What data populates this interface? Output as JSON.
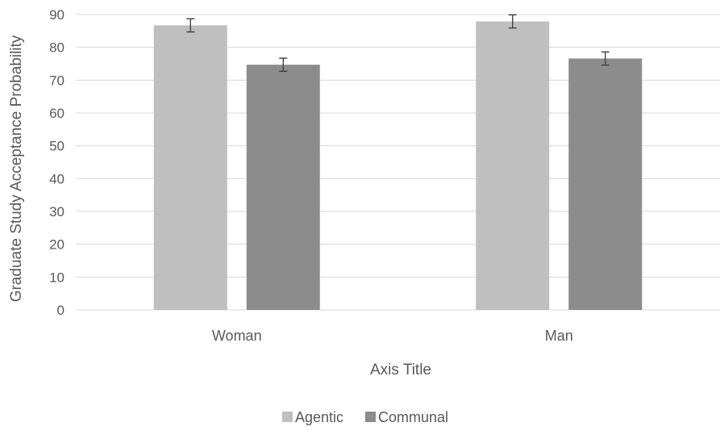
{
  "chart_data": {
    "type": "bar",
    "categories": [
      "Woman",
      "Man"
    ],
    "series": [
      {
        "name": "Agentic",
        "values": [
          86.7,
          87.9
        ],
        "error": [
          2.0,
          2.0
        ],
        "color": "#bfbfbf"
      },
      {
        "name": "Communal",
        "values": [
          74.7,
          76.6
        ],
        "error": [
          2.0,
          2.0
        ],
        "color": "#8c8c8c"
      }
    ],
    "xlabel": "Axis Title",
    "ylabel": "Graduate Study Acceptance Probability",
    "ylim": [
      0,
      90
    ],
    "yticks": [
      0,
      10,
      20,
      30,
      40,
      50,
      60,
      70,
      80,
      90
    ],
    "grid": true,
    "legend_position": "bottom",
    "gridline_color": "#d9d9d9",
    "text_color": "#595959",
    "errorbar_color": "#404040"
  }
}
